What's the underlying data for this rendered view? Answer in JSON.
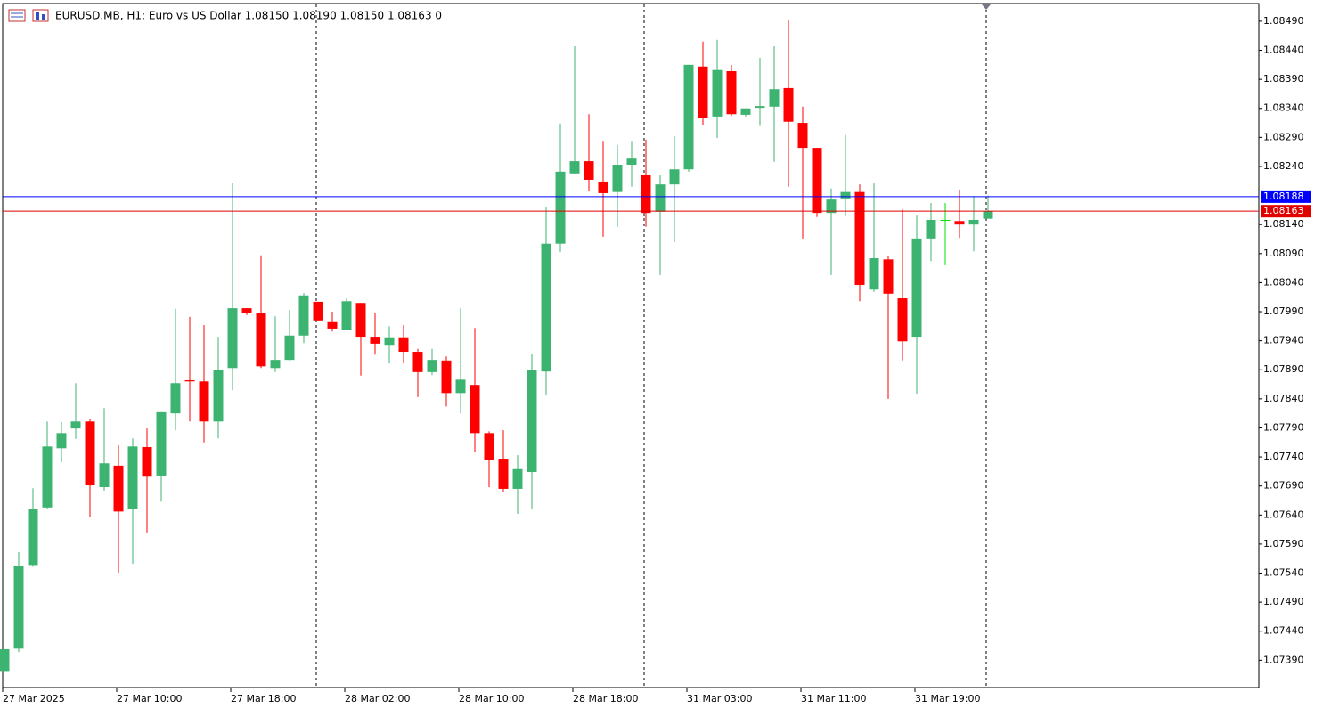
{
  "chart_data": {
    "type": "candlestick",
    "title": "EURUSD.MB, H1:  Euro vs US Dollar  1.08150 1.08190 1.08150 1.08163  0",
    "categories": [
      "27 Mar 2025",
      null,
      null,
      null,
      null,
      null,
      null,
      null,
      "27 Mar 10:00",
      null,
      null,
      null,
      null,
      null,
      null,
      null,
      "27 Mar 18:00",
      null,
      null,
      null,
      null,
      null,
      null,
      null,
      "28 Mar 02:00",
      null,
      null,
      null,
      null,
      null,
      null,
      null,
      "28 Mar 10:00",
      null,
      null,
      null,
      null,
      null,
      null,
      null,
      "28 Mar 18:00",
      null,
      null,
      null,
      null,
      null,
      null,
      null,
      "31 Mar 03:00",
      null,
      null,
      null,
      null,
      null,
      null,
      null,
      "31 Mar 11:00",
      null,
      null,
      null,
      null,
      null,
      null,
      null,
      "31 Mar 19:00",
      null,
      null,
      null,
      null,
      null
    ],
    "open": [
      1.0737,
      1.0741,
      1.07554,
      1.07653,
      1.07755,
      1.07789,
      1.07801,
      1.07688,
      1.07725,
      1.0765,
      1.07757,
      1.07708,
      1.07815,
      1.07872,
      1.0787,
      1.07801,
      1.07893,
      1.07996,
      1.07987,
      1.07893,
      1.07907,
      1.07949,
      1.08007,
      1.07972,
      1.07959,
      1.08005,
      1.07947,
      1.07933,
      1.07946,
      1.07921,
      1.07886,
      1.07906,
      1.0785,
      1.07864,
      1.07781,
      1.07737,
      1.07685,
      1.07714,
      1.07887,
      1.08107,
      1.08228,
      1.08249,
      1.08214,
      1.08196,
      1.08243,
      1.08226,
      1.08162,
      1.08209,
      1.08235,
      1.08412,
      1.08326,
      1.08404,
      1.08329,
      1.08341,
      1.08343,
      1.08375,
      1.08315,
      1.08272,
      1.0816,
      1.08185,
      1.08196,
      1.08028,
      1.0808,
      1.08013,
      1.07947,
      1.08116,
      1.08148,
      1.08146,
      1.0814,
      1.0815
    ],
    "high": [
      1.07409,
      1.07576,
      1.07686,
      1.07801,
      1.078,
      1.07867,
      1.07806,
      1.07824,
      1.0776,
      1.07772,
      1.07789,
      1.07817,
      1.07995,
      1.07981,
      1.07967,
      1.07947,
      1.08211,
      1.07996,
      1.08087,
      1.07982,
      1.07993,
      1.08022,
      1.08007,
      1.0799,
      1.08013,
      1.08005,
      1.07987,
      1.07965,
      1.07967,
      1.07926,
      1.07926,
      1.07913,
      1.07996,
      1.07962,
      1.07784,
      1.07786,
      1.07743,
      1.07918,
      1.08171,
      1.08314,
      1.08447,
      1.0833,
      1.08284,
      1.08277,
      1.08284,
      1.08286,
      1.08226,
      1.08292,
      1.08415,
      1.08455,
      1.08458,
      1.08415,
      1.0834,
      1.08427,
      1.08447,
      1.08493,
      1.08343,
      1.08272,
      1.08202,
      1.08294,
      1.08209,
      1.08212,
      1.08085,
      1.08166,
      1.08157,
      1.08177,
      1.08177,
      1.082,
      1.08189,
      1.0819
    ],
    "low": [
      1.0737,
      1.07404,
      1.07551,
      1.0765,
      1.07731,
      1.07771,
      1.07637,
      1.07682,
      1.07541,
      1.07556,
      1.0761,
      1.07663,
      1.07786,
      1.07801,
      1.07765,
      1.07772,
      1.07855,
      1.07984,
      1.07893,
      1.07886,
      1.07906,
      1.07936,
      1.07975,
      1.07956,
      1.07958,
      1.0788,
      1.07916,
      1.07901,
      1.07901,
      1.07843,
      1.07881,
      1.07827,
      1.07815,
      1.07749,
      1.07688,
      1.07679,
      1.07642,
      1.0765,
      1.07847,
      1.08093,
      1.08228,
      1.08197,
      1.08119,
      1.08136,
      1.08205,
      1.08136,
      1.08053,
      1.0811,
      1.08231,
      1.08312,
      1.08289,
      1.08327,
      1.08326,
      1.08311,
      1.08248,
      1.08205,
      1.08116,
      1.08153,
      1.08053,
      1.08156,
      1.08008,
      1.08024,
      1.0784,
      1.07906,
      1.07849,
      1.08077,
      1.0807,
      1.08117,
      1.08094,
      1.0815
    ],
    "close": [
      1.07409,
      1.07553,
      1.0765,
      1.07758,
      1.07781,
      1.07801,
      1.07691,
      1.07729,
      1.07646,
      1.07758,
      1.07706,
      1.07817,
      1.07867,
      1.0787,
      1.07801,
      1.0789,
      1.07996,
      1.07987,
      1.07896,
      1.07907,
      1.07949,
      1.08018,
      1.07975,
      1.07961,
      1.08008,
      1.07947,
      1.07935,
      1.07946,
      1.07921,
      1.07886,
      1.07907,
      1.0785,
      1.07873,
      1.07781,
      1.07734,
      1.07685,
      1.07719,
      1.0789,
      1.08107,
      1.08231,
      1.08249,
      1.08217,
      1.08194,
      1.08243,
      1.08255,
      1.0816,
      1.08209,
      1.08235,
      1.08415,
      1.08324,
      1.08406,
      1.0833,
      1.0834,
      1.08344,
      1.08373,
      1.08317,
      1.08272,
      1.0816,
      1.08183,
      1.08196,
      1.08036,
      1.08082,
      1.08021,
      1.07939,
      1.08116,
      1.08148,
      1.08148,
      1.0814,
      1.08148,
      1.08163
    ],
    "up_color": "#3cb371",
    "down_color": "#ff0000",
    "doji_color": "#00e000",
    "ylim": [
      1.07343,
      1.08519
    ],
    "yticks": [
      {
        "value": 1.0849,
        "label": "1.08490"
      },
      {
        "value": 1.0844,
        "label": "1.08440"
      },
      {
        "value": 1.0839,
        "label": "1.08390"
      },
      {
        "value": 1.0834,
        "label": "1.08340"
      },
      {
        "value": 1.0829,
        "label": "1.08290"
      },
      {
        "value": 1.0824,
        "label": "1.08240"
      },
      {
        "value": 1.0814,
        "label": "1.08140"
      },
      {
        "value": 1.0809,
        "label": "1.08090"
      },
      {
        "value": 1.0804,
        "label": "1.08040"
      },
      {
        "value": 1.0799,
        "label": "1.07990"
      },
      {
        "value": 1.0794,
        "label": "1.07940"
      },
      {
        "value": 1.0789,
        "label": "1.07890"
      },
      {
        "value": 1.0784,
        "label": "1.07840"
      },
      {
        "value": 1.0779,
        "label": "1.07790"
      },
      {
        "value": 1.0774,
        "label": "1.07740"
      },
      {
        "value": 1.0769,
        "label": "1.07690"
      },
      {
        "value": 1.0764,
        "label": "1.07640"
      },
      {
        "value": 1.0759,
        "label": "1.07590"
      },
      {
        "value": 1.0754,
        "label": "1.07540"
      },
      {
        "value": 1.0749,
        "label": "1.07490"
      },
      {
        "value": 1.0744,
        "label": "1.07440"
      },
      {
        "value": 1.0739,
        "label": "1.07390"
      }
    ],
    "price_lines": [
      {
        "value": 1.08188,
        "color": "#0000ff"
      },
      {
        "value": 1.08163,
        "color": "#e00000"
      }
    ]
  }
}
